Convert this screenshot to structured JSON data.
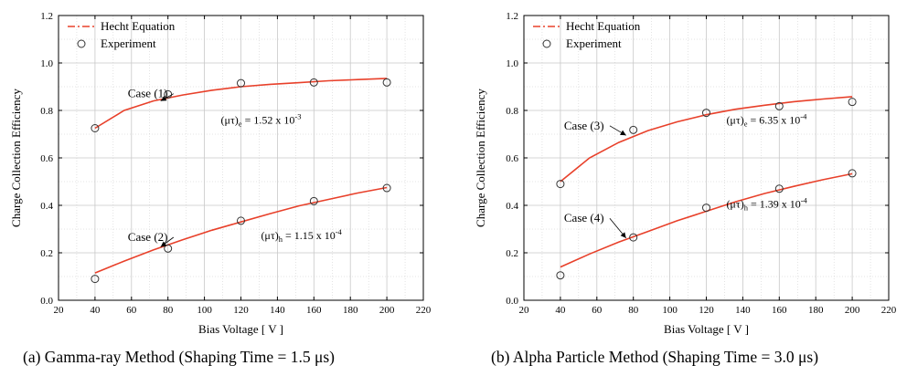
{
  "chart_data": [
    {
      "type": "line",
      "panel": "a",
      "caption": "(a) Gamma-ray Method (Shaping Time = 1.5 μs)",
      "xlabel": "Bias Voltage [ V ]",
      "ylabel": "Charge Collection Efficiency",
      "xlim": [
        20,
        220
      ],
      "ylim": [
        0.0,
        1.2
      ],
      "xticks": [
        20,
        40,
        60,
        80,
        100,
        120,
        140,
        160,
        180,
        200,
        220
      ],
      "yticks": [
        0.0,
        0.2,
        0.4,
        0.6,
        0.8,
        1.0,
        1.2
      ],
      "xtick_labels": [
        "20",
        "40",
        "60",
        "80",
        "100",
        "120",
        "140",
        "160",
        "180",
        "200",
        "220"
      ],
      "ytick_labels": [
        "0.0",
        "0.2",
        "0.4",
        "0.6",
        "0.8",
        "1.0",
        "1.2"
      ],
      "grid": true,
      "legend_position": "top-left",
      "legend": {
        "hecht": "Hecht Equation",
        "experiment": "Experiment"
      },
      "series": [
        {
          "name": "Hecht Equation",
          "case": "Case (1)",
          "kind": "line",
          "x": [
            40,
            56,
            72,
            88,
            104,
            120,
            136,
            152,
            168,
            184,
            200
          ],
          "y": [
            0.725,
            0.8,
            0.84,
            0.865,
            0.885,
            0.9,
            0.91,
            0.917,
            0.925,
            0.93,
            0.935
          ]
        },
        {
          "name": "Experiment",
          "case": "Case (1)",
          "kind": "scatter",
          "x": [
            40,
            80,
            120,
            160,
            200
          ],
          "y": [
            0.725,
            0.868,
            0.915,
            0.918,
            0.918
          ]
        },
        {
          "name": "Hecht Equation",
          "case": "Case (2)",
          "kind": "line",
          "x": [
            40,
            56,
            72,
            88,
            104,
            120,
            136,
            152,
            168,
            184,
            200
          ],
          "y": [
            0.115,
            0.165,
            0.212,
            0.255,
            0.295,
            0.33,
            0.365,
            0.398,
            0.425,
            0.452,
            0.475
          ]
        },
        {
          "name": "Experiment",
          "case": "Case (2)",
          "kind": "scatter",
          "x": [
            40,
            80,
            120,
            160,
            200
          ],
          "y": [
            0.09,
            0.218,
            0.335,
            0.418,
            0.473
          ]
        }
      ],
      "annotations": [
        {
          "id": "case1",
          "text": "Case (1)",
          "x": 58,
          "y": 0.855,
          "arrow_to": [
            76,
            0.84
          ]
        },
        {
          "id": "case2",
          "text": "Case (2)",
          "x": 58,
          "y": 0.25,
          "arrow_to": [
            76,
            0.225
          ]
        },
        {
          "id": "mu_e",
          "pre": "(μτ)",
          "sub": "e",
          "mid": " = 1.52 x 10",
          "sup": "-3",
          "x": 109,
          "y": 0.745
        },
        {
          "id": "mu_h",
          "pre": "(μτ)",
          "sub": "h",
          "mid": " = 1.15 x 10",
          "sup": "-4",
          "x": 131,
          "y": 0.258
        }
      ]
    },
    {
      "type": "line",
      "panel": "b",
      "caption": "(b) Alpha Particle Method (Shaping Time = 3.0 μs)",
      "xlabel": "Bias Voltage [ V ]",
      "ylabel": "Charge Collection Efficiency",
      "xlim": [
        20,
        220
      ],
      "ylim": [
        0.0,
        1.2
      ],
      "xticks": [
        20,
        40,
        60,
        80,
        100,
        120,
        140,
        160,
        180,
        200,
        220
      ],
      "yticks": [
        0.0,
        0.2,
        0.4,
        0.6,
        0.8,
        1.0,
        1.2
      ],
      "xtick_labels": [
        "20",
        "40",
        "60",
        "80",
        "100",
        "120",
        "140",
        "160",
        "180",
        "200",
        "220"
      ],
      "ytick_labels": [
        "0.0",
        "0.2",
        "0.4",
        "0.6",
        "0.8",
        "1.0",
        "1.2"
      ],
      "grid": true,
      "legend_position": "top-left",
      "legend": {
        "hecht": "Hecht Equation",
        "experiment": "Experiment"
      },
      "series": [
        {
          "name": "Hecht Equation",
          "case": "Case (3)",
          "kind": "line",
          "x": [
            40,
            56,
            72,
            88,
            104,
            120,
            136,
            152,
            168,
            184,
            200
          ],
          "y": [
            0.5,
            0.6,
            0.665,
            0.715,
            0.752,
            0.782,
            0.805,
            0.822,
            0.837,
            0.848,
            0.858
          ]
        },
        {
          "name": "Experiment",
          "case": "Case (3)",
          "kind": "scatter",
          "x": [
            40,
            80,
            120,
            160,
            200
          ],
          "y": [
            0.49,
            0.718,
            0.79,
            0.818,
            0.836
          ]
        },
        {
          "name": "Hecht Equation",
          "case": "Case (4)",
          "kind": "line",
          "x": [
            40,
            56,
            72,
            88,
            104,
            120,
            136,
            152,
            168,
            184,
            200
          ],
          "y": [
            0.14,
            0.195,
            0.245,
            0.29,
            0.335,
            0.375,
            0.415,
            0.45,
            0.48,
            0.508,
            0.533
          ]
        },
        {
          "name": "Experiment",
          "case": "Case (4)",
          "kind": "scatter",
          "x": [
            40,
            80,
            120,
            160,
            200
          ],
          "y": [
            0.105,
            0.265,
            0.39,
            0.47,
            0.535
          ]
        }
      ],
      "annotations": [
        {
          "id": "case3",
          "text": "Case (3)",
          "x": 42,
          "y": 0.72,
          "arrow_to": [
            76,
            0.695
          ]
        },
        {
          "id": "case4",
          "text": "Case (4)",
          "x": 42,
          "y": 0.33,
          "arrow_to": [
            76,
            0.262
          ]
        },
        {
          "id": "mu_e",
          "pre": "(μτ)",
          "sub": "e",
          "mid": " = 6.35 x 10",
          "sup": "-4",
          "x": 131,
          "y": 0.745
        },
        {
          "id": "mu_h",
          "pre": "(μτ)",
          "sub": "h",
          "mid": " = 1.39 x 10",
          "sup": "-4",
          "x": 131,
          "y": 0.39
        }
      ]
    }
  ],
  "colors": {
    "line": "#e8402a",
    "marker": "#333333",
    "grid": "#c8c8c8",
    "axis": "#000000"
  }
}
